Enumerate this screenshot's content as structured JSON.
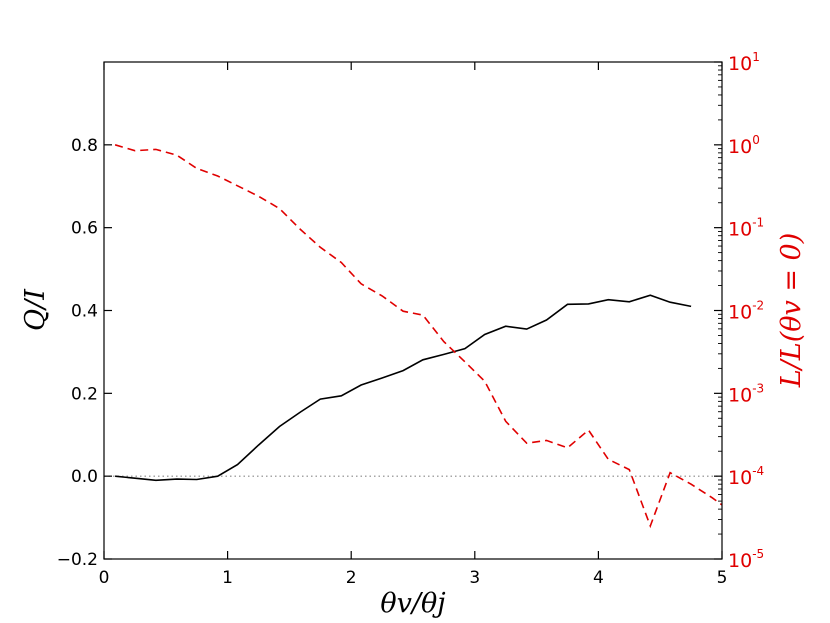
{
  "chart_data": {
    "type": "line",
    "xlabel": "θv/θj",
    "ylabel_left": "Q/I",
    "ylabel_right": "L/L(θv = 0)",
    "xlim": [
      0,
      5
    ],
    "ylim_left": [
      -0.2,
      1.0
    ],
    "ylim_right": [
      1e-05,
      10
    ],
    "yscale_right": "log",
    "grid": false,
    "x_ticks": [
      "0",
      "1",
      "2",
      "3",
      "4",
      "5"
    ],
    "y_ticks_left": [
      "−0.2",
      "0.0",
      "0.2",
      "0.4",
      "0.6",
      "0.8"
    ],
    "y_ticks_right": [
      {
        "base": "10",
        "exp": "-5"
      },
      {
        "base": "10",
        "exp": "-4"
      },
      {
        "base": "10",
        "exp": "-3"
      },
      {
        "base": "10",
        "exp": "-2"
      },
      {
        "base": "10",
        "exp": "-1"
      },
      {
        "base": "10",
        "exp": "0"
      },
      {
        "base": "10",
        "exp": "1"
      }
    ],
    "zero_line": {
      "y": 0,
      "style": "dotted",
      "color": "#888888"
    },
    "series": [
      {
        "axis": "left",
        "color": "#000000",
        "style": "solid",
        "x": [
          0.09,
          0.25,
          0.42,
          0.59,
          0.75,
          0.92,
          1.08,
          1.25,
          1.42,
          1.59,
          1.75,
          1.92,
          2.08,
          2.25,
          2.42,
          2.58,
          2.75,
          2.92,
          3.08,
          3.25,
          3.42,
          3.58,
          3.75,
          3.92,
          4.08,
          4.25,
          4.42,
          4.58,
          4.75
        ],
        "values": [
          0.0,
          -0.005,
          -0.01,
          -0.007,
          -0.008,
          0.0,
          0.028,
          0.075,
          0.12,
          0.155,
          0.186,
          0.194,
          0.22,
          0.237,
          0.255,
          0.281,
          0.294,
          0.308,
          0.342,
          0.362,
          0.355,
          0.377,
          0.415,
          0.416,
          0.426,
          0.421,
          0.437,
          0.42,
          0.41
        ]
      },
      {
        "axis": "right",
        "color": "#e00000",
        "style": "dashed",
        "x": [
          0.09,
          0.25,
          0.42,
          0.59,
          0.75,
          0.92,
          1.08,
          1.25,
          1.42,
          1.59,
          1.75,
          1.92,
          2.08,
          2.25,
          2.42,
          2.58,
          2.75,
          2.92,
          3.08,
          3.25,
          3.42,
          3.58,
          3.75,
          3.92,
          4.08,
          4.25,
          4.42,
          4.58,
          4.75,
          4.92,
          5.0
        ],
        "values": [
          1.0,
          0.85,
          0.88,
          0.75,
          0.52,
          0.42,
          0.32,
          0.24,
          0.17,
          0.095,
          0.058,
          0.038,
          0.021,
          0.015,
          0.0098,
          0.0088,
          0.0042,
          0.0024,
          0.0014,
          0.00046,
          0.00025,
          0.00027,
          0.00022,
          0.00036,
          0.00016,
          0.00012,
          2.5e-05,
          0.00011,
          8e-05,
          5.5e-05,
          4.5e-05
        ]
      }
    ]
  }
}
